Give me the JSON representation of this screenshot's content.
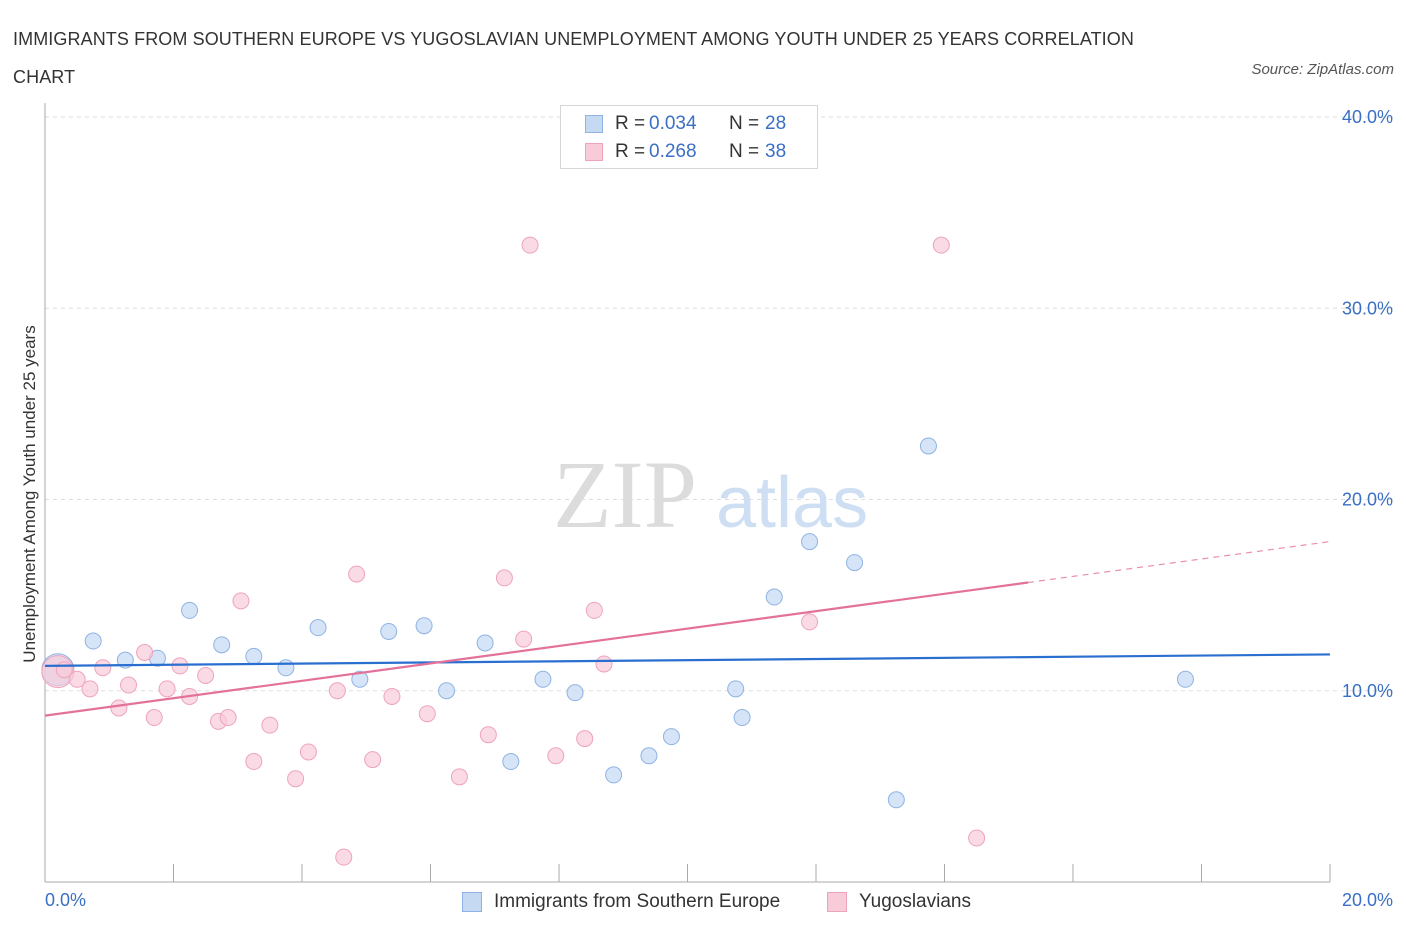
{
  "title": "IMMIGRANTS FROM SOUTHERN EUROPE VS YUGOSLAVIAN UNEMPLOYMENT AMONG YOUTH UNDER 25 YEARS CORRELATION CHART",
  "source": "Source: ZipAtlas.com",
  "watermark": {
    "zip": "ZIP",
    "atlas": "atlas"
  },
  "legend_top": [
    {
      "r_label": "R =",
      "r_value": "0.034",
      "n_label": "N =",
      "n_value": "28"
    },
    {
      "r_label": "R =",
      "r_value": "0.268",
      "n_label": "N =",
      "n_value": "38"
    }
  ],
  "legend_bottom": [
    "Immigrants from Southern Europe",
    "Yugoslavians"
  ],
  "colors": {
    "blue_fill": "#c5d9f3",
    "blue_stroke": "#8fb3e4",
    "blue_line": "#2a6fcf",
    "pink_fill": "#f8cbd9",
    "pink_stroke": "#eea3bd",
    "pink_line": "#e3719a",
    "axis_text": "#3a6fc4",
    "grid": "#dddddd"
  },
  "chart_data": {
    "type": "scatter",
    "title": "IMMIGRANTS FROM SOUTHERN EUROPE VS YUGOSLAVIAN UNEMPLOYMENT AMONG YOUTH UNDER 25 YEARS CORRELATION CHART",
    "xlabel": "",
    "ylabel": "Unemployment Among Youth under 25 years",
    "xlim": [
      0,
      20
    ],
    "ylim": [
      0,
      40
    ],
    "x_tick_labels": [
      {
        "value": 0,
        "label": "0.0%"
      },
      {
        "value": 20,
        "label": "20.0%"
      }
    ],
    "y_tick_labels": [
      {
        "value": 10,
        "label": "10.0%"
      },
      {
        "value": 20,
        "label": "20.0%"
      },
      {
        "value": 30,
        "label": "30.0%"
      },
      {
        "value": 40,
        "label": "40.0%"
      }
    ],
    "series": [
      {
        "name": "Immigrants from Southern Europe",
        "color": "#8fb3e4",
        "R": 0.034,
        "N": 28,
        "trend": {
          "x": [
            0,
            20
          ],
          "y": [
            11.3,
            11.9
          ],
          "solid_to": 20
        },
        "points": [
          {
            "x": 0.2,
            "y": 11.1,
            "big": true
          },
          {
            "x": 0.75,
            "y": 12.6
          },
          {
            "x": 1.25,
            "y": 11.6
          },
          {
            "x": 1.75,
            "y": 11.7
          },
          {
            "x": 2.25,
            "y": 14.2
          },
          {
            "x": 2.75,
            "y": 12.4
          },
          {
            "x": 3.25,
            "y": 11.8
          },
          {
            "x": 3.75,
            "y": 11.2
          },
          {
            "x": 4.25,
            "y": 13.3
          },
          {
            "x": 4.9,
            "y": 10.6
          },
          {
            "x": 5.35,
            "y": 13.1
          },
          {
            "x": 5.9,
            "y": 13.4
          },
          {
            "x": 6.25,
            "y": 10.0
          },
          {
            "x": 6.85,
            "y": 12.5
          },
          {
            "x": 7.25,
            "y": 6.3
          },
          {
            "x": 7.75,
            "y": 10.6
          },
          {
            "x": 8.25,
            "y": 9.9
          },
          {
            "x": 8.85,
            "y": 5.6
          },
          {
            "x": 9.4,
            "y": 6.6
          },
          {
            "x": 9.75,
            "y": 7.6
          },
          {
            "x": 10.75,
            "y": 10.1
          },
          {
            "x": 10.85,
            "y": 8.6
          },
          {
            "x": 11.35,
            "y": 14.9
          },
          {
            "x": 11.9,
            "y": 17.8
          },
          {
            "x": 12.6,
            "y": 16.7
          },
          {
            "x": 13.25,
            "y": 4.3
          },
          {
            "x": 13.75,
            "y": 22.8
          },
          {
            "x": 17.75,
            "y": 10.6
          }
        ]
      },
      {
        "name": "Yugoslavians",
        "color": "#eea3bd",
        "R": 0.268,
        "N": 38,
        "trend": {
          "x": [
            0,
            20
          ],
          "y": [
            8.7,
            17.8
          ],
          "solid_to": 15.3
        },
        "points": [
          {
            "x": 0.2,
            "y": 11.0,
            "big": true
          },
          {
            "x": 0.3,
            "y": 11.1
          },
          {
            "x": 0.5,
            "y": 10.6
          },
          {
            "x": 0.7,
            "y": 10.1
          },
          {
            "x": 0.9,
            "y": 11.2
          },
          {
            "x": 1.15,
            "y": 9.1
          },
          {
            "x": 1.3,
            "y": 10.3
          },
          {
            "x": 1.55,
            "y": 12.0
          },
          {
            "x": 1.7,
            "y": 8.6
          },
          {
            "x": 1.9,
            "y": 10.1
          },
          {
            "x": 2.1,
            "y": 11.3
          },
          {
            "x": 2.25,
            "y": 9.7
          },
          {
            "x": 2.5,
            "y": 10.8
          },
          {
            "x": 2.7,
            "y": 8.4
          },
          {
            "x": 2.85,
            "y": 8.6
          },
          {
            "x": 3.05,
            "y": 14.7
          },
          {
            "x": 3.25,
            "y": 6.3
          },
          {
            "x": 3.5,
            "y": 8.2
          },
          {
            "x": 3.9,
            "y": 5.4
          },
          {
            "x": 4.1,
            "y": 6.8
          },
          {
            "x": 4.55,
            "y": 10.0
          },
          {
            "x": 4.65,
            "y": 1.3
          },
          {
            "x": 4.85,
            "y": 16.1
          },
          {
            "x": 5.1,
            "y": 6.4
          },
          {
            "x": 5.4,
            "y": 9.7
          },
          {
            "x": 5.95,
            "y": 8.8
          },
          {
            "x": 6.45,
            "y": 5.5
          },
          {
            "x": 6.9,
            "y": 7.7
          },
          {
            "x": 7.15,
            "y": 15.9
          },
          {
            "x": 7.45,
            "y": 12.7
          },
          {
            "x": 7.55,
            "y": 33.3
          },
          {
            "x": 7.95,
            "y": 6.6
          },
          {
            "x": 8.4,
            "y": 7.5
          },
          {
            "x": 8.55,
            "y": 14.2
          },
          {
            "x": 8.7,
            "y": 11.4
          },
          {
            "x": 11.9,
            "y": 13.6
          },
          {
            "x": 13.95,
            "y": 33.3
          },
          {
            "x": 14.5,
            "y": 2.3
          }
        ]
      }
    ]
  }
}
